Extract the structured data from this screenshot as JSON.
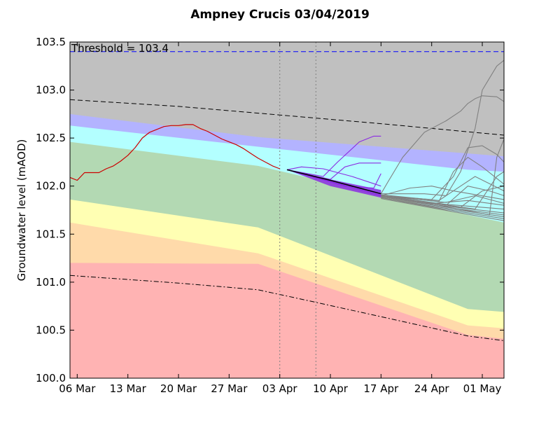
{
  "chart_data": {
    "type": "line",
    "title": "Ampney Crucis 03/04/2019",
    "ylabel": "Groundwater level (mAOD)",
    "xlabel": "",
    "x_unit": "date (2019)",
    "xlim": [
      "2019-03-05",
      "2019-05-04"
    ],
    "ylim": [
      100.0,
      103.5
    ],
    "x_ticks": [
      {
        "date": "2019-03-06",
        "label": "06 Mar"
      },
      {
        "date": "2019-03-13",
        "label": "13 Mar"
      },
      {
        "date": "2019-03-20",
        "label": "20 Mar"
      },
      {
        "date": "2019-03-27",
        "label": "27 Mar"
      },
      {
        "date": "2019-04-03",
        "label": "03 Apr"
      },
      {
        "date": "2019-04-10",
        "label": "10 Apr"
      },
      {
        "date": "2019-04-17",
        "label": "17 Apr"
      },
      {
        "date": "2019-04-24",
        "label": "24 Apr"
      },
      {
        "date": "2019-05-01",
        "label": "01 May"
      }
    ],
    "y_ticks": [
      {
        "value": 100.0,
        "label": "100.0"
      },
      {
        "value": 100.5,
        "label": "100.5"
      },
      {
        "value": 101.0,
        "label": "101.0"
      },
      {
        "value": 101.5,
        "label": "101.5"
      },
      {
        "value": 102.0,
        "label": "102.0"
      },
      {
        "value": 102.5,
        "label": "102.5"
      },
      {
        "value": 103.0,
        "label": "103.0"
      },
      {
        "value": 103.5,
        "label": "103.5"
      }
    ],
    "grid": false,
    "legend": "none",
    "threshold": {
      "value": 103.4,
      "label": "Threshold = 103.4",
      "color": "#0000ff",
      "style": "dashed"
    },
    "vertical_markers": [
      {
        "date": "2019-04-03",
        "color": "#808080",
        "style": "dotted"
      },
      {
        "date": "2019-04-08",
        "color": "#808080",
        "style": "dotted"
      }
    ],
    "bands": [
      {
        "color": "#ffb3b3",
        "upper": [
          [
            "2019-03-05",
            101.2
          ],
          [
            "2019-03-31",
            101.19
          ],
          [
            "2019-04-29",
            100.45
          ],
          [
            "2019-05-04",
            100.41
          ]
        ]
      },
      {
        "color": "#ffdaaa",
        "upper": [
          [
            "2019-03-05",
            101.62
          ],
          [
            "2019-03-31",
            101.3
          ],
          [
            "2019-04-29",
            100.55
          ],
          [
            "2019-05-04",
            100.52
          ]
        ]
      },
      {
        "color": "#ffffb3",
        "upper": [
          [
            "2019-03-05",
            101.86
          ],
          [
            "2019-03-31",
            101.57
          ],
          [
            "2019-04-29",
            100.72
          ],
          [
            "2019-05-04",
            100.69
          ]
        ]
      },
      {
        "color": "#b3d9b3",
        "upper": [
          [
            "2019-03-05",
            102.46
          ],
          [
            "2019-03-31",
            102.21
          ],
          [
            "2019-04-29",
            101.7
          ],
          [
            "2019-05-04",
            101.62
          ]
        ]
      },
      {
        "color": "#b3ffff",
        "upper": [
          [
            "2019-03-05",
            102.63
          ],
          [
            "2019-03-31",
            102.41
          ],
          [
            "2019-04-29",
            102.17
          ],
          [
            "2019-05-04",
            102.15
          ]
        ]
      },
      {
        "color": "#b3b3ff",
        "upper": [
          [
            "2019-03-05",
            102.75
          ],
          [
            "2019-03-31",
            102.51
          ],
          [
            "2019-04-29",
            102.34
          ],
          [
            "2019-05-04",
            102.31
          ]
        ]
      },
      {
        "color": "#c0c0c0",
        "upper": [
          [
            "2019-03-05",
            103.5
          ],
          [
            "2019-05-04",
            103.5
          ]
        ]
      }
    ],
    "reference_lines": [
      {
        "name": "upper-dashed",
        "color": "#000000",
        "style": "dashed",
        "points": [
          [
            "2019-03-05",
            102.9
          ],
          [
            "2019-03-20",
            102.83
          ],
          [
            "2019-04-03",
            102.74
          ],
          [
            "2019-04-17",
            102.65
          ],
          [
            "2019-05-04",
            102.53
          ]
        ]
      },
      {
        "name": "lower-dashdot",
        "color": "#000000",
        "style": "dashdot",
        "points": [
          [
            "2019-03-05",
            101.07
          ],
          [
            "2019-03-20",
            100.99
          ],
          [
            "2019-03-31",
            100.92
          ],
          [
            "2019-04-08",
            100.79
          ],
          [
            "2019-04-17",
            100.64
          ],
          [
            "2019-04-29",
            100.44
          ],
          [
            "2019-05-04",
            100.39
          ]
        ]
      }
    ],
    "series": [
      {
        "name": "",
        "role": "observed",
        "color": "#cc0000",
        "points": [
          [
            "2019-03-05",
            102.09
          ],
          [
            "2019-03-06",
            102.06
          ],
          [
            "2019-03-07",
            102.14
          ],
          [
            "2019-03-08",
            102.14
          ],
          [
            "2019-03-09",
            102.14
          ],
          [
            "2019-03-10",
            102.18
          ],
          [
            "2019-03-11",
            102.21
          ],
          [
            "2019-03-12",
            102.26
          ],
          [
            "2019-03-13",
            102.32
          ],
          [
            "2019-03-14",
            102.4
          ],
          [
            "2019-03-15",
            102.5
          ],
          [
            "2019-03-16",
            102.56
          ],
          [
            "2019-03-17",
            102.59
          ],
          [
            "2019-03-18",
            102.62
          ],
          [
            "2019-03-19",
            102.63
          ],
          [
            "2019-03-20",
            102.63
          ],
          [
            "2019-03-21",
            102.64
          ],
          [
            "2019-03-22",
            102.64
          ],
          [
            "2019-03-23",
            102.6
          ],
          [
            "2019-03-24",
            102.57
          ],
          [
            "2019-03-25",
            102.53
          ],
          [
            "2019-03-26",
            102.49
          ],
          [
            "2019-03-27",
            102.46
          ],
          [
            "2019-03-28",
            102.43
          ],
          [
            "2019-03-29",
            102.39
          ],
          [
            "2019-03-30",
            102.34
          ],
          [
            "2019-03-31",
            102.29
          ],
          [
            "2019-04-01",
            102.25
          ],
          [
            "2019-04-02",
            102.21
          ],
          [
            "2019-04-03",
            102.18
          ]
        ]
      },
      {
        "name": "",
        "role": "forecast-envelope",
        "color": "#8b2be2",
        "upper": [
          [
            "2019-04-04",
            102.17
          ],
          [
            "2019-04-10",
            102.07
          ],
          [
            "2019-04-17",
            101.96
          ]
        ],
        "lower": [
          [
            "2019-04-04",
            102.17
          ],
          [
            "2019-04-10",
            102.0
          ],
          [
            "2019-04-17",
            101.88
          ]
        ]
      },
      {
        "name": "",
        "role": "forecast-median",
        "color": "#000000",
        "points": [
          [
            "2019-04-04",
            102.17
          ],
          [
            "2019-04-10",
            102.06
          ],
          [
            "2019-04-17",
            101.92
          ]
        ]
      },
      {
        "name": "",
        "role": "forecast-member",
        "color": "#8b2be2",
        "points": [
          [
            "2019-04-04",
            102.17
          ],
          [
            "2019-04-09",
            102.1
          ],
          [
            "2019-04-11",
            102.25
          ],
          [
            "2019-04-14",
            102.46
          ],
          [
            "2019-04-16",
            102.52
          ],
          [
            "2019-04-17",
            102.52
          ]
        ]
      },
      {
        "name": "",
        "role": "forecast-member",
        "color": "#8b2be2",
        "points": [
          [
            "2019-04-04",
            102.17
          ],
          [
            "2019-04-10",
            102.07
          ],
          [
            "2019-04-12",
            102.2
          ],
          [
            "2019-04-14",
            102.24
          ],
          [
            "2019-04-17",
            102.24
          ]
        ]
      },
      {
        "name": "",
        "role": "forecast-member",
        "color": "#8b2be2",
        "points": [
          [
            "2019-04-04",
            102.17
          ],
          [
            "2019-04-06",
            102.2
          ],
          [
            "2019-04-09",
            102.18
          ],
          [
            "2019-04-13",
            102.1
          ],
          [
            "2019-04-17",
            102.0
          ]
        ]
      },
      {
        "name": "",
        "role": "forecast-member",
        "color": "#8b2be2",
        "points": [
          [
            "2019-04-04",
            102.17
          ],
          [
            "2019-04-12",
            102.0
          ],
          [
            "2019-04-16",
            101.98
          ],
          [
            "2019-04-17",
            102.13
          ]
        ]
      },
      {
        "name": "",
        "role": "forecast-member",
        "color": "#8b2be2",
        "points": [
          [
            "2019-04-04",
            102.17
          ],
          [
            "2019-04-10",
            102.05
          ],
          [
            "2019-04-17",
            101.9
          ]
        ]
      },
      {
        "name": "",
        "role": "outlook-member",
        "color": "#808080",
        "points": [
          [
            "2019-04-17",
            101.92
          ],
          [
            "2019-04-18",
            102.05
          ],
          [
            "2019-04-20",
            102.3
          ],
          [
            "2019-04-23",
            102.56
          ],
          [
            "2019-04-26",
            102.68
          ],
          [
            "2019-04-28",
            102.78
          ],
          [
            "2019-04-29",
            102.86
          ],
          [
            "2019-04-30",
            102.91
          ],
          [
            "2019-05-01",
            102.94
          ],
          [
            "2019-05-03",
            102.93
          ],
          [
            "2019-05-04",
            102.88
          ]
        ]
      },
      {
        "name": "",
        "role": "outlook-member",
        "color": "#808080",
        "points": [
          [
            "2019-04-17",
            101.92
          ],
          [
            "2019-04-23",
            101.92
          ],
          [
            "2019-04-26",
            101.9
          ],
          [
            "2019-04-28",
            102.15
          ],
          [
            "2019-04-30",
            102.6
          ],
          [
            "2019-05-01",
            103.0
          ],
          [
            "2019-05-03",
            103.25
          ],
          [
            "2019-05-04",
            103.31
          ]
        ]
      },
      {
        "name": "",
        "role": "outlook-member",
        "color": "#808080",
        "points": [
          [
            "2019-04-17",
            101.9
          ],
          [
            "2019-04-24",
            101.86
          ],
          [
            "2019-04-27",
            102.1
          ],
          [
            "2019-04-29",
            102.4
          ],
          [
            "2019-05-01",
            102.42
          ],
          [
            "2019-05-03",
            102.33
          ],
          [
            "2019-05-04",
            102.25
          ]
        ]
      },
      {
        "name": "",
        "role": "outlook-member",
        "color": "#808080",
        "points": [
          [
            "2019-04-17",
            101.9
          ],
          [
            "2019-04-25",
            101.84
          ],
          [
            "2019-04-27",
            102.15
          ],
          [
            "2019-04-29",
            102.3
          ],
          [
            "2019-05-01",
            102.2
          ],
          [
            "2019-05-04",
            102.02
          ]
        ]
      },
      {
        "name": "",
        "role": "outlook-member",
        "color": "#808080",
        "points": [
          [
            "2019-04-17",
            101.91
          ],
          [
            "2019-04-25",
            101.85
          ],
          [
            "2019-04-28",
            102.0
          ],
          [
            "2019-04-30",
            102.1
          ],
          [
            "2019-05-04",
            101.95
          ]
        ]
      },
      {
        "name": "",
        "role": "outlook-member",
        "color": "#808080",
        "points": [
          [
            "2019-04-17",
            101.9
          ],
          [
            "2019-04-21",
            101.98
          ],
          [
            "2019-04-24",
            102.0
          ],
          [
            "2019-04-27",
            101.95
          ],
          [
            "2019-05-04",
            101.86
          ]
        ]
      },
      {
        "name": "",
        "role": "outlook-member",
        "color": "#808080",
        "points": [
          [
            "2019-04-17",
            101.9
          ],
          [
            "2019-04-26",
            101.8
          ],
          [
            "2019-04-29",
            102.0
          ],
          [
            "2019-05-02",
            101.95
          ],
          [
            "2019-05-04",
            101.9
          ]
        ]
      },
      {
        "name": "",
        "role": "outlook-member",
        "color": "#808080",
        "points": [
          [
            "2019-04-17",
            101.9
          ],
          [
            "2019-04-28",
            101.78
          ],
          [
            "2019-05-01",
            101.95
          ],
          [
            "2019-05-04",
            102.0
          ]
        ]
      },
      {
        "name": "",
        "role": "outlook-member",
        "color": "#808080",
        "points": [
          [
            "2019-04-17",
            101.9
          ],
          [
            "2019-04-30",
            101.76
          ],
          [
            "2019-05-03",
            102.1
          ],
          [
            "2019-05-04",
            102.15
          ]
        ]
      },
      {
        "name": "",
        "role": "outlook-member",
        "color": "#808080",
        "points": [
          [
            "2019-04-17",
            101.89
          ],
          [
            "2019-04-25",
            101.8
          ],
          [
            "2019-05-02",
            101.7
          ],
          [
            "2019-05-03",
            102.3
          ],
          [
            "2019-05-04",
            102.49
          ]
        ]
      },
      {
        "name": "",
        "role": "outlook-member",
        "color": "#808080",
        "points": [
          [
            "2019-04-17",
            101.9
          ],
          [
            "2019-04-24",
            101.82
          ],
          [
            "2019-04-29",
            101.85
          ],
          [
            "2019-05-04",
            101.8
          ]
        ]
      },
      {
        "name": "",
        "role": "outlook-member",
        "color": "#808080",
        "points": [
          [
            "2019-04-17",
            101.88
          ],
          [
            "2019-04-25",
            101.78
          ],
          [
            "2019-05-04",
            101.68
          ]
        ]
      },
      {
        "name": "",
        "role": "outlook-member",
        "color": "#808080",
        "points": [
          [
            "2019-04-17",
            101.89
          ],
          [
            "2019-04-25",
            101.8
          ],
          [
            "2019-05-04",
            101.72
          ]
        ]
      },
      {
        "name": "",
        "role": "outlook-member",
        "color": "#808080",
        "points": [
          [
            "2019-04-17",
            101.87
          ],
          [
            "2019-04-25",
            101.76
          ],
          [
            "2019-05-04",
            101.64
          ]
        ]
      },
      {
        "name": "",
        "role": "outlook-member",
        "color": "#808080",
        "points": [
          [
            "2019-04-17",
            101.88
          ],
          [
            "2019-04-25",
            101.77
          ],
          [
            "2019-05-04",
            101.66
          ]
        ]
      },
      {
        "name": "",
        "role": "outlook-member",
        "color": "#808080",
        "points": [
          [
            "2019-04-17",
            101.89
          ],
          [
            "2019-04-25",
            101.79
          ],
          [
            "2019-05-04",
            101.7
          ]
        ]
      },
      {
        "name": "",
        "role": "outlook-member",
        "color": "#808080",
        "points": [
          [
            "2019-04-17",
            101.9
          ],
          [
            "2019-04-26",
            101.81
          ],
          [
            "2019-05-04",
            101.76
          ]
        ]
      },
      {
        "name": "",
        "role": "outlook-member",
        "color": "#808080",
        "points": [
          [
            "2019-04-17",
            101.9
          ],
          [
            "2019-04-26",
            101.83
          ],
          [
            "2019-04-30",
            101.9
          ],
          [
            "2019-05-04",
            101.82
          ]
        ]
      }
    ]
  }
}
